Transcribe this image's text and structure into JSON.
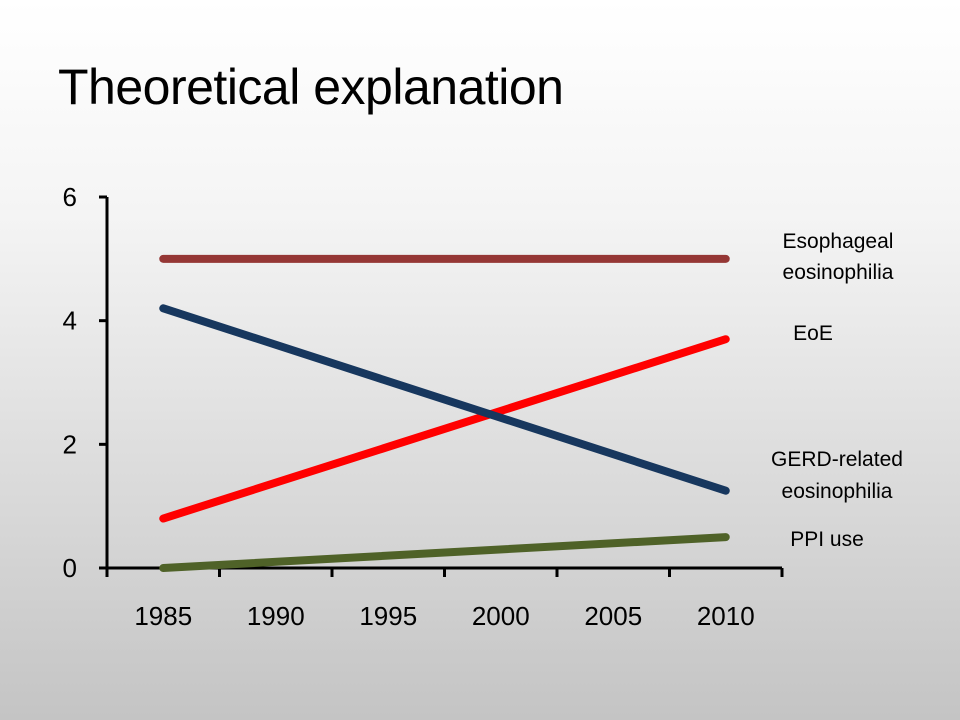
{
  "slide": {
    "title": "Theoretical explanation"
  },
  "chart_data": {
    "type": "line",
    "title": "",
    "xlabel": "",
    "ylabel": "",
    "x_ticks": [
      "1985",
      "1990",
      "1995",
      "2000",
      "2005",
      "2010"
    ],
    "y_ticks": [
      "0",
      "2",
      "4",
      "6"
    ],
    "xlim": [
      1982.5,
      2012.5
    ],
    "ylim": [
      0,
      6
    ],
    "grid": false,
    "legend": "right-side labels",
    "series": [
      {
        "name": "Esophageal eosinophilia",
        "label_lines": [
          "Esophageal",
          "eosinophilia"
        ],
        "color": "#953735",
        "points": [
          [
            1985,
            5.0
          ],
          [
            2010,
            5.0
          ]
        ]
      },
      {
        "name": "EoE",
        "label_lines": [
          "EoE"
        ],
        "color": "#ff0000",
        "points": [
          [
            1985,
            0.8
          ],
          [
            2010,
            3.7
          ]
        ]
      },
      {
        "name": "GERD-related eosinophilia",
        "label_lines": [
          "GERD-related",
          "eosinophilia"
        ],
        "color": "#17375e",
        "points": [
          [
            1985,
            4.2
          ],
          [
            2010,
            1.25
          ]
        ]
      },
      {
        "name": "PPI use",
        "label_lines": [
          "PPI use"
        ],
        "color": "#4f6228",
        "points": [
          [
            1985,
            0.0
          ],
          [
            2010,
            0.5
          ]
        ]
      }
    ]
  }
}
